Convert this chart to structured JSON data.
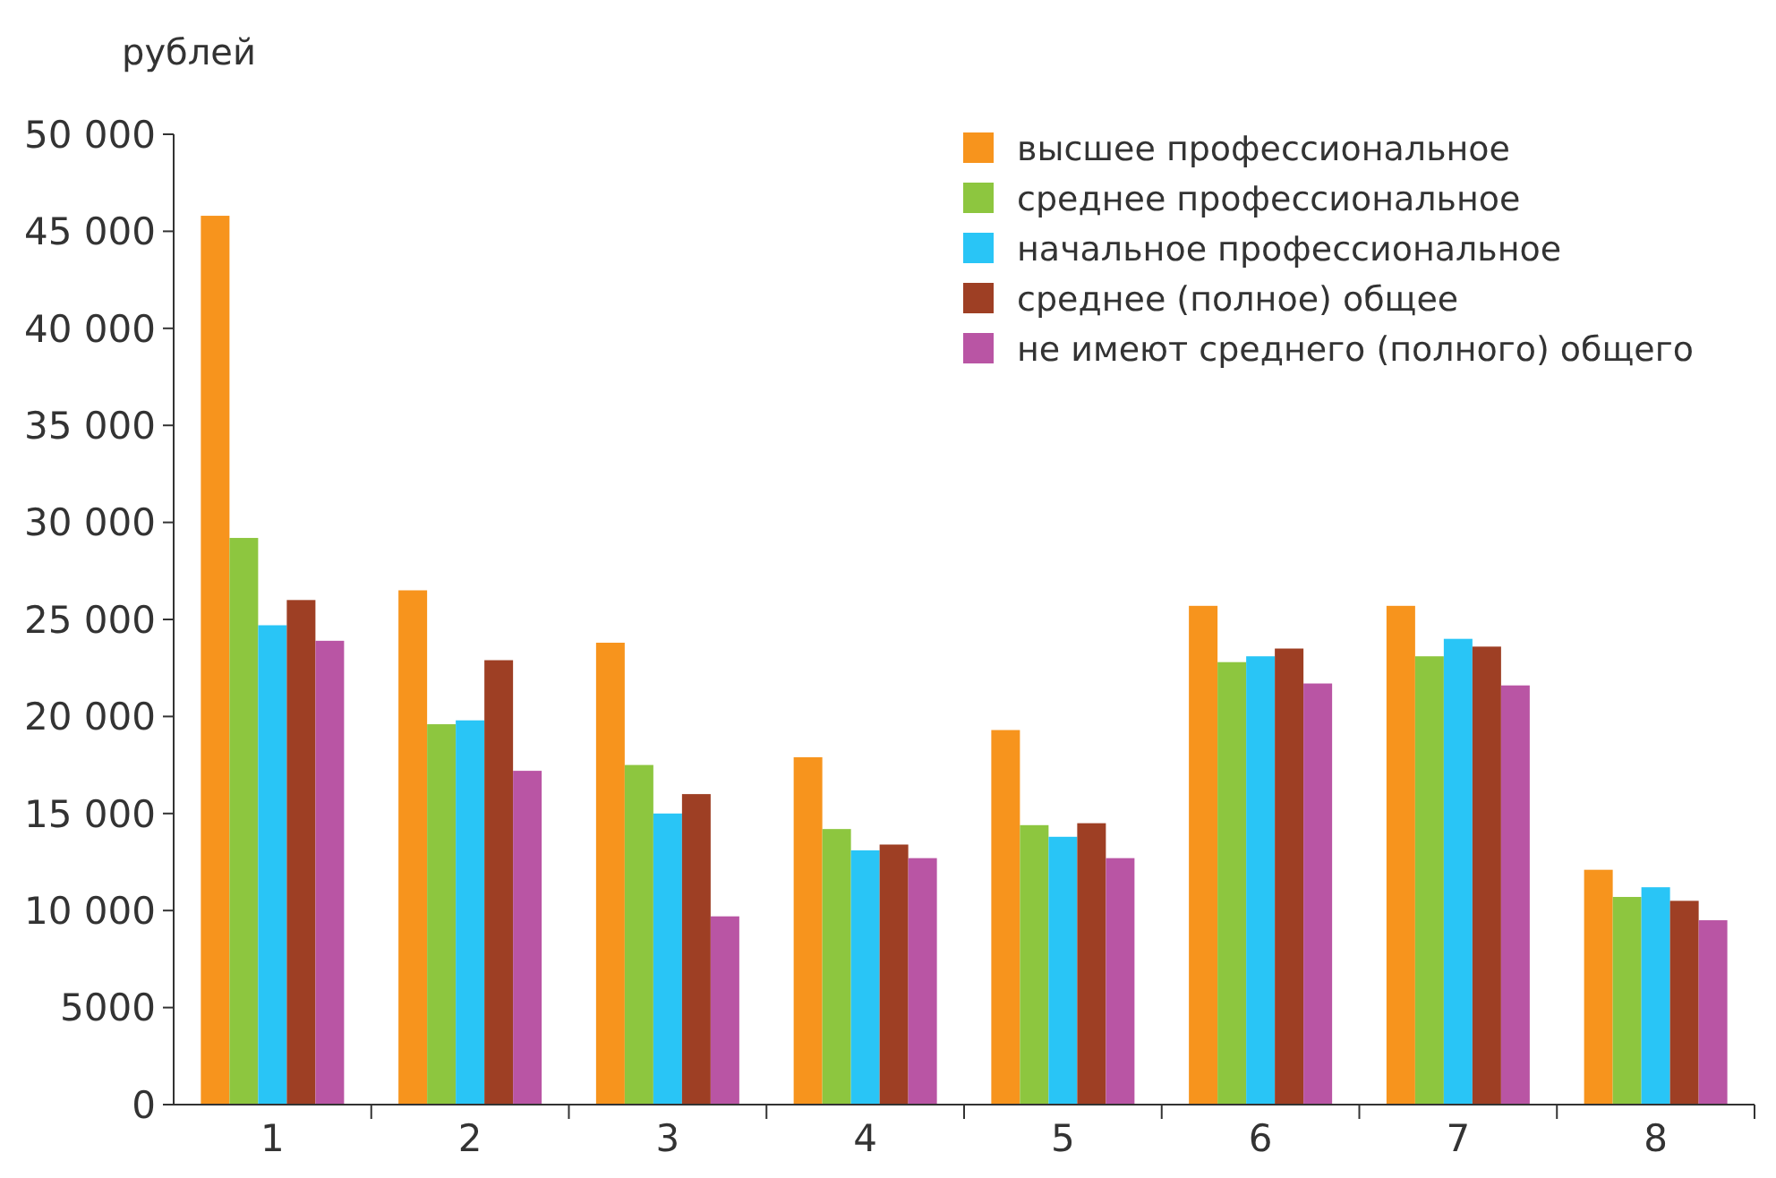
{
  "chart_data": {
    "type": "bar",
    "ylabel": "рублей",
    "categories": [
      "1",
      "2",
      "3",
      "4",
      "5",
      "6",
      "7",
      "8"
    ],
    "series": [
      {
        "name": "высшее профессиональное",
        "color": "#f7941d",
        "values": [
          45800,
          26500,
          23800,
          17900,
          19300,
          25700,
          25700,
          12100
        ]
      },
      {
        "name": "среднее профессиональное",
        "color": "#8dc63f",
        "values": [
          29200,
          19600,
          17500,
          14200,
          14400,
          22800,
          23100,
          10700
        ]
      },
      {
        "name": "начальное профессиональное",
        "color": "#29c5f6",
        "values": [
          24700,
          19800,
          15000,
          13100,
          13800,
          23100,
          24000,
          11200
        ]
      },
      {
        "name": "среднее (полное) общее",
        "color": "#9e3f24",
        "values": [
          26000,
          22900,
          16000,
          13400,
          14500,
          23500,
          23600,
          10500
        ]
      },
      {
        "name": "не имеют среднего (полного) общего",
        "color": "#b955a4",
        "values": [
          23900,
          17200,
          9700,
          12700,
          12700,
          21700,
          21600,
          9500
        ]
      }
    ],
    "ylim": [
      0,
      50000
    ],
    "yticks": [
      0,
      5000,
      {
        "value": 10000,
        "label": "10 000"
      },
      {
        "value": 15000,
        "label": "15 000"
      },
      {
        "value": 20000,
        "label": "20 000"
      },
      {
        "value": 25000,
        "label": "25 000"
      },
      {
        "value": 30000,
        "label": "30 000"
      },
      {
        "value": 35000,
        "label": "35 000"
      },
      {
        "value": 40000,
        "label": "40 000"
      },
      {
        "value": 45000,
        "label": "45 000"
      },
      {
        "value": 50000,
        "label": "50 000"
      }
    ],
    "grid": false,
    "legend": "top right"
  }
}
